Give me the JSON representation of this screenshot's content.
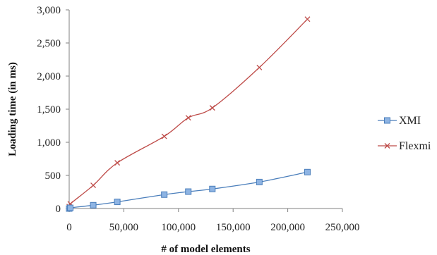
{
  "chart_data": {
    "type": "line",
    "title": "",
    "xlabel": "# of model elements",
    "ylabel": "Loading time (in ms)",
    "xlim": [
      0,
      250000
    ],
    "ylim": [
      0,
      3000
    ],
    "x_ticks": [
      0,
      50000,
      100000,
      150000,
      200000,
      250000
    ],
    "x_tick_labels": [
      "0",
      "50,000",
      "100,000",
      "150,000",
      "200,000",
      "250,000"
    ],
    "y_ticks": [
      0,
      500,
      1000,
      1500,
      2000,
      2500,
      3000
    ],
    "y_tick_labels": [
      "0",
      "500",
      "1,000",
      "1,500",
      "2,000",
      "2,500",
      "3,000"
    ],
    "grid": false,
    "legend_position": "right",
    "series": [
      {
        "name": "XMI",
        "color": "#4a7ebb",
        "marker": "square",
        "x": [
          0,
          1000,
          22000,
          44000,
          87000,
          109000,
          131000,
          174000,
          218000
        ],
        "y": [
          0,
          10,
          50,
          100,
          210,
          255,
          295,
          400,
          550
        ]
      },
      {
        "name": "Flexmi",
        "color": "#be4b48",
        "marker": "x",
        "x": [
          0,
          1000,
          22000,
          44000,
          87000,
          109000,
          131000,
          174000,
          218000
        ],
        "y": [
          30,
          70,
          350,
          690,
          1090,
          1370,
          1520,
          2130,
          2860
        ]
      }
    ]
  }
}
